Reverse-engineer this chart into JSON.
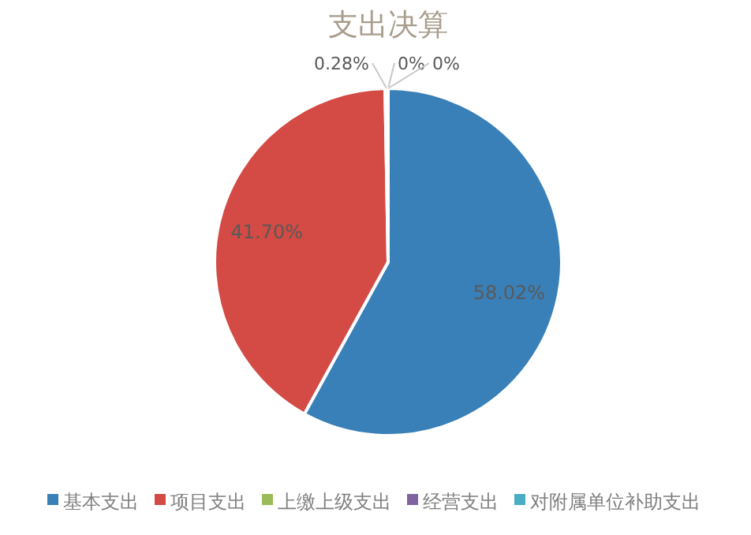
{
  "chart_data": {
    "type": "pie",
    "title": "支出决算",
    "categories": [
      "基本支出",
      "项目支出",
      "上缴上级支出",
      "经营支出",
      "对附属单位补助支出"
    ],
    "values": [
      58.02,
      41.7,
      0.28,
      0,
      0
    ],
    "value_labels": [
      "58.02%",
      "41.70%",
      "0.28%",
      "0%",
      "0%"
    ],
    "colors": [
      "#3a80b8",
      "#d44a44",
      "#9bbb59",
      "#8064a2",
      "#4bacc6"
    ],
    "legend": "bottom"
  }
}
